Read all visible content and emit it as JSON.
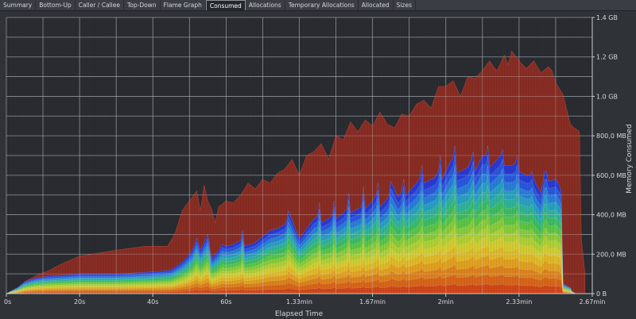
{
  "tabs": [
    {
      "label": "Summary",
      "active": false
    },
    {
      "label": "Bottom-Up",
      "active": false
    },
    {
      "label": "Caller / Callee",
      "active": false
    },
    {
      "label": "Top-Down",
      "active": false
    },
    {
      "label": "Flame Graph",
      "active": false
    },
    {
      "label": "Consumed",
      "active": true
    },
    {
      "label": "Allocations",
      "active": false
    },
    {
      "label": "Temporary Allocations",
      "active": false
    },
    {
      "label": "Allocated",
      "active": false
    },
    {
      "label": "Sizes",
      "active": false
    }
  ],
  "chart_data": {
    "type": "area",
    "xlabel": "Elapsed Time",
    "ylabel": "Memory Consumed",
    "x_unit": "seconds",
    "xlim": [
      0,
      160
    ],
    "ylim_mb": [
      0,
      1400
    ],
    "x_ticks": [
      {
        "value": 0,
        "label": "0s"
      },
      {
        "value": 20,
        "label": "20s"
      },
      {
        "value": 40,
        "label": "40s"
      },
      {
        "value": 60,
        "label": "60s"
      },
      {
        "value": 80,
        "label": "1.33min"
      },
      {
        "value": 100,
        "label": "1.67min"
      },
      {
        "value": 120,
        "label": "2min"
      },
      {
        "value": 140,
        "label": "2.33min"
      },
      {
        "value": 160,
        "label": "2.67min"
      }
    ],
    "y_ticks": [
      {
        "value": 0,
        "label": "0 B"
      },
      {
        "value": 200,
        "label": "200,0 MB"
      },
      {
        "value": 400,
        "label": "400,0 MB"
      },
      {
        "value": 600,
        "label": "600,0 MB"
      },
      {
        "value": 800,
        "label": "800,0 MB"
      },
      {
        "value": 1000,
        "label": "1.0 GB"
      },
      {
        "value": 1200,
        "label": "1.2 GB"
      },
      {
        "value": 1400,
        "label": "1.4 GB"
      }
    ],
    "grid": true,
    "total_series": {
      "color": "#8e2f26",
      "x": [
        0,
        3,
        5,
        8,
        12,
        15,
        20,
        30,
        38,
        44,
        46,
        48,
        50,
        52,
        53,
        54,
        55,
        56,
        57,
        58,
        60,
        62,
        64,
        66,
        68,
        70,
        72,
        74,
        76,
        78,
        80,
        82,
        84,
        86,
        88,
        90,
        92,
        94,
        96,
        98,
        100,
        102,
        104,
        106,
        108,
        110,
        112,
        114,
        116,
        118,
        120,
        122,
        124,
        126,
        128,
        130,
        132,
        133,
        134,
        136,
        137,
        138,
        140,
        142,
        144,
        146,
        148,
        149,
        150,
        152,
        154,
        155,
        156,
        156.5,
        157,
        158
      ],
      "y": [
        0,
        5,
        60,
        90,
        120,
        150,
        190,
        220,
        240,
        240,
        300,
        420,
        470,
        520,
        420,
        550,
        470,
        430,
        360,
        440,
        470,
        460,
        500,
        560,
        530,
        580,
        560,
        610,
        630,
        680,
        600,
        700,
        720,
        760,
        680,
        800,
        780,
        870,
        820,
        880,
        850,
        920,
        860,
        840,
        910,
        900,
        960,
        980,
        940,
        1050,
        1050,
        1080,
        1000,
        1100,
        1090,
        1130,
        1180,
        1150,
        1130,
        1210,
        1160,
        1230,
        1180,
        1140,
        1180,
        1120,
        1150,
        1130,
        1070,
        1010,
        860,
        840,
        830,
        820,
        280,
        100
      ]
    },
    "stack_series": {
      "x": [
        0,
        3,
        5,
        8,
        12,
        20,
        30,
        40,
        45,
        48,
        50,
        51,
        52,
        52.5,
        53,
        54,
        55,
        55.5,
        56,
        58,
        59,
        60,
        62,
        64,
        64.5,
        65,
        68,
        70,
        72,
        74,
        76,
        76.5,
        77,
        80,
        82,
        84,
        85,
        85.5,
        86,
        88,
        89,
        89.5,
        90,
        92,
        93,
        93.5,
        94,
        96,
        97,
        97.5,
        98,
        100,
        101,
        101.5,
        102,
        104,
        104.5,
        105,
        107,
        108,
        108.5,
        109,
        112,
        113,
        113.5,
        114,
        117,
        118,
        118.5,
        119,
        121,
        122,
        122.5,
        123,
        126,
        127,
        127.5,
        128,
        130,
        131,
        131.5,
        132,
        134,
        135,
        135.5,
        136,
        138,
        139,
        139.5,
        140,
        142,
        143,
        143.5,
        144,
        146,
        147,
        147.5,
        148,
        150,
        151,
        151.5,
        152,
        154,
        154.5,
        155,
        155.5,
        156,
        158
      ],
      "top": [
        0,
        30,
        60,
        80,
        90,
        100,
        100,
        110,
        120,
        160,
        200,
        230,
        280,
        250,
        220,
        260,
        300,
        240,
        180,
        220,
        250,
        240,
        250,
        270,
        320,
        240,
        260,
        290,
        320,
        330,
        350,
        370,
        420,
        280,
        330,
        380,
        390,
        460,
        360,
        380,
        400,
        470,
        380,
        410,
        430,
        510,
        410,
        430,
        440,
        540,
        430,
        470,
        500,
        560,
        440,
        480,
        500,
        570,
        490,
        520,
        580,
        500,
        560,
        590,
        650,
        560,
        590,
        620,
        700,
        580,
        660,
        690,
        750,
        610,
        640,
        680,
        720,
        620,
        700,
        700,
        750,
        640,
        680,
        700,
        730,
        650,
        650,
        660,
        700,
        620,
        600,
        600,
        620,
        580,
        510,
        620,
        620,
        570,
        580,
        550,
        520,
        50,
        30,
        10,
        5,
        0
      ]
    },
    "stack_colors": [
      "#d94a1a",
      "#e06a1c",
      "#e5881f",
      "#eaa723",
      "#e9c12a",
      "#dcd534",
      "#b8d838",
      "#8fd43e",
      "#5fcd4a",
      "#3fc36a",
      "#33b9a0",
      "#2aa6c9",
      "#2a83e0",
      "#2b5be6",
      "#2c3bd8"
    ]
  }
}
